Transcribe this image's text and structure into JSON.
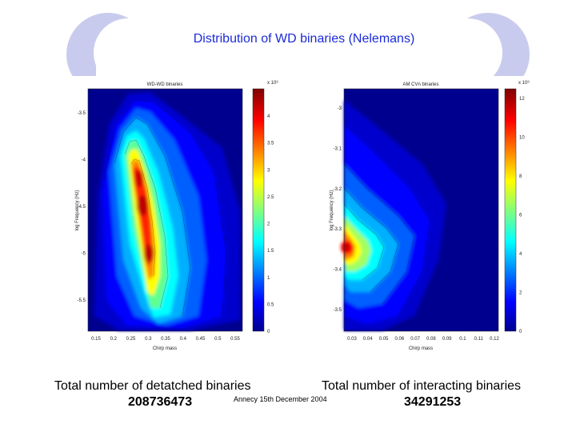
{
  "slide": {
    "title": "Distribution of WD binaries (Nelemans)",
    "footer": "Annecy 15th December 2004"
  },
  "left_plot": {
    "title": "WD-WD binaries",
    "xlabel": "Chirp mass",
    "ylabel": "log Frequency (Hz)",
    "x_ticks": [
      "0.15",
      "0.2",
      "0.25",
      "0.3",
      "0.35",
      "0.4",
      "0.45",
      "0.5",
      "0.55"
    ],
    "y_ticks": [
      "-3.5",
      "-4",
      "-4.5",
      "-5",
      "-5.5"
    ],
    "cbar_ticks": [
      "0",
      "0.5",
      "1",
      "1.5",
      "2",
      "2.5",
      "3",
      "3.5",
      "4"
    ],
    "cbar_exponent": "x 10⁶",
    "caption": "Total number of detatched binaries",
    "count": "208736473"
  },
  "right_plot": {
    "title": "AM CVn binaries",
    "xlabel": "Chirp mass",
    "ylabel": "log Frequency (Hz)",
    "x_ticks": [
      "0.03",
      "0.04",
      "0.05",
      "0.06",
      "0.07",
      "0.08",
      "0.09",
      "0.1",
      "0.11",
      "0.12"
    ],
    "y_ticks": [
      "-3",
      "-3.1",
      "-3.2",
      "-3.3",
      "-3.4",
      "-3.5"
    ],
    "cbar_ticks": [
      "0",
      "2",
      "4",
      "6",
      "8",
      "10",
      "12"
    ],
    "cbar_exponent": "x 10⁶",
    "caption": "Total number of interacting binaries",
    "count": "34291253"
  },
  "colors": {
    "title": "#1b2bd8",
    "deco": "#c9cbee",
    "field": "#00008f"
  }
}
